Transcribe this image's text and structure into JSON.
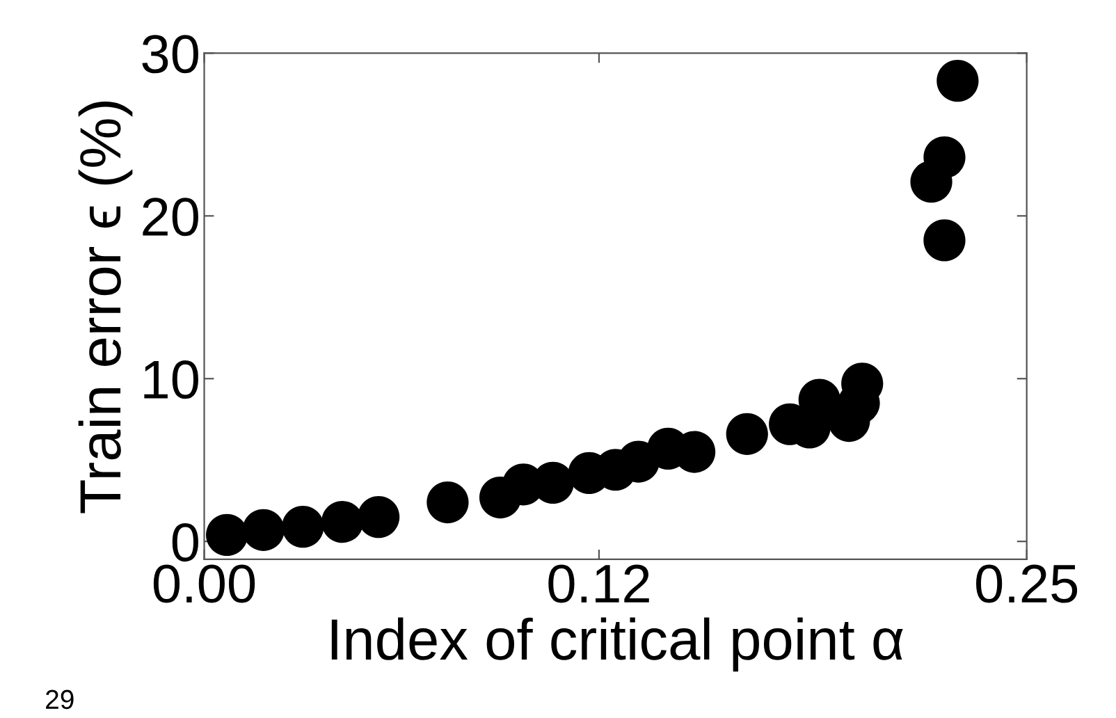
{
  "chart_data": {
    "type": "scatter",
    "xlabel": "Index of critical point α",
    "ylabel": "Train error ϵ (%)",
    "annotations": [
      "29"
    ],
    "series": [
      {
        "color": "#000000",
        "x": [
          0.0069,
          0.018,
          0.03,
          0.042,
          0.053,
          0.074,
          0.09,
          0.097,
          0.106,
          0.117,
          0.125,
          0.132,
          0.141,
          0.149,
          0.165,
          0.178,
          0.184,
          0.187,
          0.196,
          0.199,
          0.2,
          0.221,
          0.225,
          0.225,
          0.229
        ],
        "values": [
          0.4,
          0.7,
          0.9,
          1.2,
          1.5,
          2.4,
          2.7,
          3.5,
          3.6,
          4.2,
          4.4,
          4.9,
          5.7,
          5.5,
          6.6,
          7.2,
          7.0,
          8.7,
          7.4,
          8.5,
          9.7,
          22.1,
          23.6,
          18.5,
          28.3
        ]
      }
    ],
    "xlim": [
      0,
      0.25
    ],
    "ylim": [
      -1.1,
      30
    ],
    "xticks": [
      {
        "value": 0,
        "label": "0.00"
      },
      0.12,
      0.25
    ],
    "yticks": [
      0,
      10,
      20,
      30
    ],
    "grid": false,
    "legend": false,
    "marker": "circle"
  }
}
